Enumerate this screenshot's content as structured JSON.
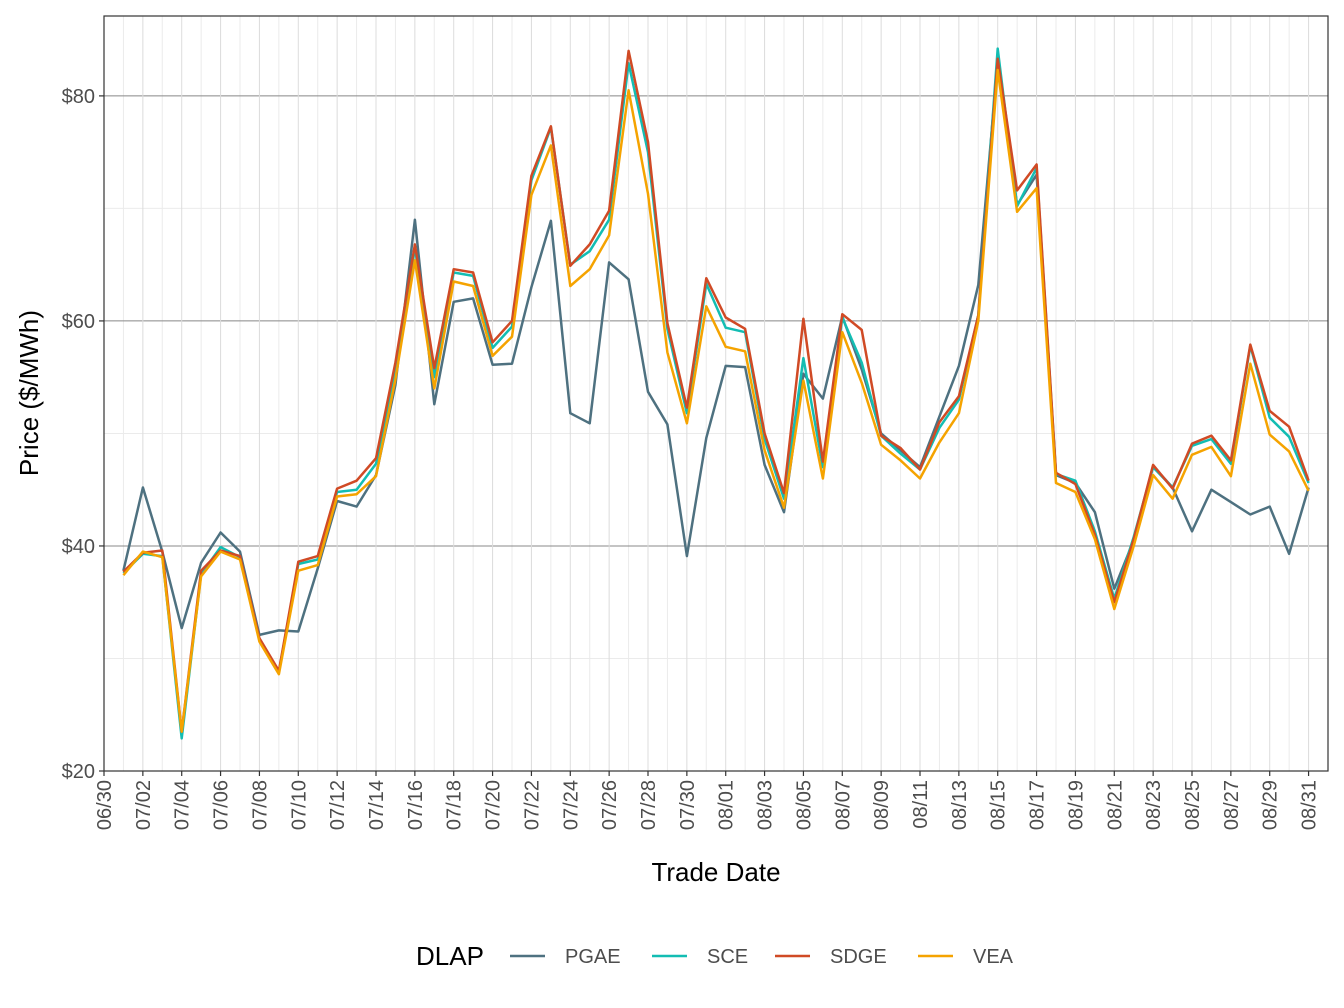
{
  "chart_data": {
    "type": "line",
    "x_label": "Trade Date",
    "y_label": "Price ($/MWh)",
    "legend_title": "DLAP",
    "legend": "bottom",
    "grid": true,
    "x": [
      "07/01",
      "07/02",
      "07/03",
      "07/04",
      "07/05",
      "07/06",
      "07/07",
      "07/08",
      "07/09",
      "07/10",
      "07/11",
      "07/12",
      "07/13",
      "07/14",
      "07/15",
      "07/16",
      "07/17",
      "07/18",
      "07/19",
      "07/20",
      "07/21",
      "07/22",
      "07/23",
      "07/24",
      "07/25",
      "07/26",
      "07/27",
      "07/28",
      "07/29",
      "07/30",
      "07/31",
      "08/01",
      "08/02",
      "08/03",
      "08/04",
      "08/05",
      "08/06",
      "08/07",
      "08/08",
      "08/09",
      "08/10",
      "08/11",
      "08/12",
      "08/13",
      "08/14",
      "08/15",
      "08/16",
      "08/17",
      "08/18",
      "08/19",
      "08/20",
      "08/21",
      "08/22",
      "08/23",
      "08/24",
      "08/25",
      "08/26",
      "08/27",
      "08/28",
      "08/29",
      "08/30",
      "08/31"
    ],
    "xlim": [
      "06/30",
      "09/01"
    ],
    "xticks": [
      "06/30",
      "07/02",
      "07/04",
      "07/06",
      "07/08",
      "07/10",
      "07/12",
      "07/14",
      "07/16",
      "07/18",
      "07/20",
      "07/22",
      "07/24",
      "07/26",
      "07/28",
      "07/30",
      "08/01",
      "08/03",
      "08/05",
      "08/07",
      "08/09",
      "08/11",
      "08/13",
      "08/15",
      "08/17",
      "08/19",
      "08/21",
      "08/23",
      "08/25",
      "08/27",
      "08/29",
      "08/31"
    ],
    "ylim": [
      20,
      87.1
    ],
    "yticks": [
      {
        "value": 20,
        "label": "$20"
      },
      {
        "value": 40,
        "label": "$40"
      },
      {
        "value": 60,
        "label": "$60"
      },
      {
        "value": 80,
        "label": "$80"
      }
    ],
    "series": [
      {
        "name": "PGAE",
        "color": "#4e7180",
        "values": [
          37.8,
          45.2,
          39.5,
          32.7,
          38.5,
          41.2,
          39.5,
          32.1,
          32.5,
          32.4,
          38.0,
          44.0,
          43.5,
          46.3,
          54.3,
          69.0,
          52.6,
          61.7,
          62.0,
          56.1,
          56.2,
          63.0,
          68.9,
          51.8,
          50.9,
          65.2,
          63.7,
          53.7,
          50.8,
          39.1,
          49.6,
          56.0,
          55.9,
          47.2,
          43.0,
          55.3,
          53.1,
          60.4,
          55.7,
          50.0,
          48.5,
          47.0,
          51.5,
          56.0,
          63.2,
          83.0,
          70.3,
          73.0,
          46.3,
          45.6,
          43.0,
          36.2,
          40.5,
          47.1,
          45.2,
          41.3,
          45.0,
          43.9,
          42.8,
          43.5,
          39.3,
          45.2
        ]
      },
      {
        "name": "SCE",
        "color": "#13bdb3",
        "values": [
          37.6,
          39.3,
          39.1,
          22.9,
          37.5,
          39.9,
          39.0,
          31.7,
          28.8,
          38.4,
          38.8,
          44.8,
          45.0,
          47.3,
          55.5,
          66.5,
          55.0,
          64.3,
          64.0,
          57.6,
          59.5,
          72.5,
          77.2,
          65.0,
          66.2,
          69.0,
          82.9,
          75.0,
          59.3,
          51.8,
          63.3,
          59.4,
          59.0,
          49.5,
          44.2,
          56.7,
          47.0,
          60.3,
          56.3,
          49.8,
          48.2,
          46.8,
          50.5,
          53.0,
          60.5,
          84.2,
          70.2,
          73.6,
          46.4,
          45.8,
          41.3,
          35.3,
          40.8,
          47.0,
          45.2,
          48.9,
          49.5,
          47.3,
          57.8,
          51.4,
          49.7,
          45.6
        ]
      },
      {
        "name": "SDGE",
        "color": "#d04a25",
        "values": [
          37.7,
          39.4,
          39.6,
          23.5,
          37.8,
          39.6,
          39.1,
          31.8,
          28.9,
          38.6,
          39.1,
          45.1,
          45.8,
          47.8,
          56.3,
          66.8,
          55.8,
          64.6,
          64.3,
          58.1,
          60.0,
          72.9,
          77.3,
          64.9,
          66.8,
          69.8,
          84.0,
          75.9,
          59.8,
          52.3,
          63.8,
          60.3,
          59.3,
          50.0,
          44.7,
          60.2,
          47.5,
          60.6,
          59.2,
          49.8,
          48.7,
          46.8,
          51.0,
          53.3,
          60.5,
          83.3,
          71.6,
          73.9,
          46.5,
          45.5,
          41.0,
          35.0,
          40.6,
          47.2,
          45.1,
          49.1,
          49.8,
          47.6,
          57.9,
          52.0,
          50.6,
          45.8
        ]
      },
      {
        "name": "VEA",
        "color": "#f5a300",
        "values": [
          37.4,
          39.5,
          39.0,
          23.5,
          37.3,
          39.5,
          38.8,
          31.5,
          28.6,
          37.8,
          38.3,
          44.4,
          44.6,
          46.2,
          54.8,
          65.4,
          54.0,
          63.5,
          63.1,
          56.9,
          58.6,
          71.2,
          75.6,
          63.1,
          64.6,
          67.6,
          80.5,
          71.3,
          57.2,
          50.9,
          61.3,
          57.7,
          57.3,
          48.5,
          43.4,
          54.7,
          46.0,
          59.0,
          54.5,
          49.0,
          47.6,
          46.0,
          49.2,
          51.8,
          60.0,
          82.3,
          69.7,
          71.8,
          45.6,
          44.8,
          40.6,
          34.4,
          40.0,
          46.3,
          44.2,
          48.1,
          48.8,
          46.2,
          56.2,
          49.9,
          48.4,
          44.9
        ]
      }
    ]
  }
}
